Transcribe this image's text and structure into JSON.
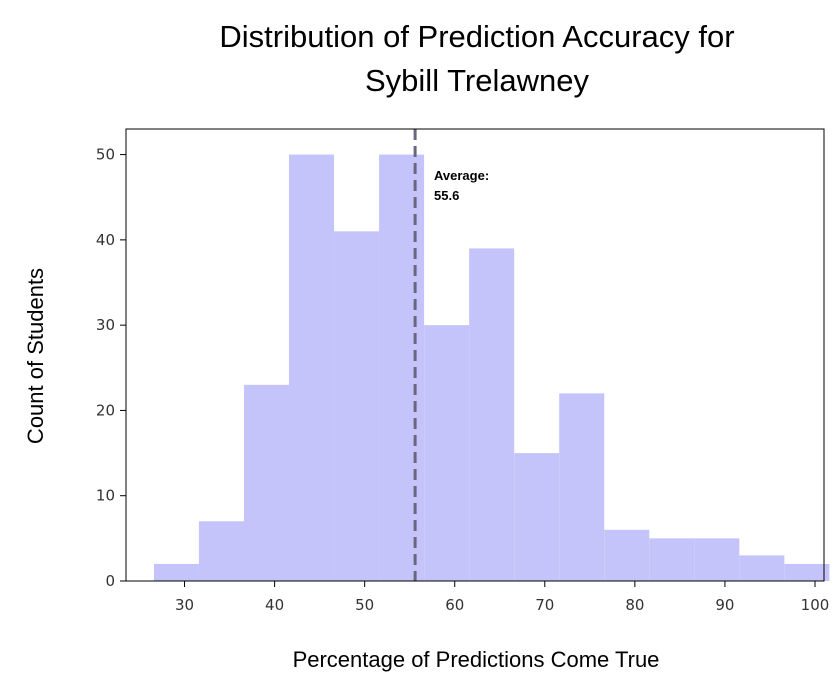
{
  "chart_data": {
    "type": "bar",
    "title_line1": "Distribution of Prediction Accuracy for",
    "title_line2": "Sybill Trelawney",
    "xlabel": "Percentage of Predictions Come True",
    "ylabel": "Count of Students",
    "xlim": [
      23.5,
      101
    ],
    "ylim": [
      0,
      53
    ],
    "xticks": [
      30,
      40,
      50,
      60,
      70,
      80,
      90,
      100
    ],
    "yticks": [
      0,
      10,
      20,
      30,
      40,
      50
    ],
    "bin_edges": [
      26.6,
      31.6,
      36.6,
      41.6,
      46.6,
      51.6,
      56.6,
      61.6,
      66.6,
      71.6,
      76.6,
      81.6,
      86.6,
      91.6,
      96.6,
      101.6
    ],
    "counts": [
      2,
      7,
      23,
      50,
      41,
      50,
      30,
      39,
      15,
      22,
      6,
      5,
      5,
      3,
      2
    ],
    "bar_color": "#c4c4fb",
    "average": 55.6,
    "annotation_label": "Average:",
    "annotation_value": "55.6",
    "average_line_color": "#6b6580",
    "grid": false
  }
}
